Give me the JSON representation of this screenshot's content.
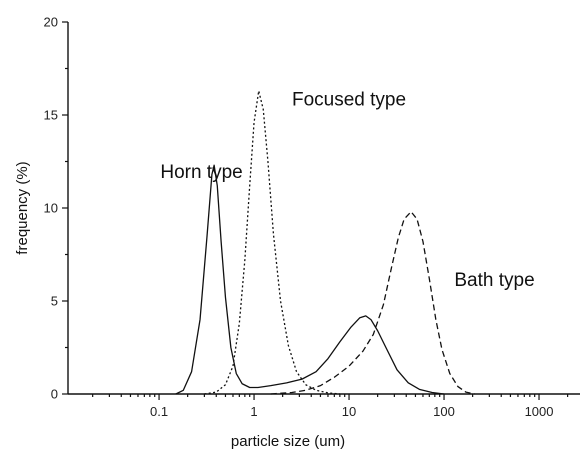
{
  "chart_data": {
    "type": "line",
    "xlabel": "particle size (um)",
    "ylabel": "frequency (%)",
    "x_scale": "log",
    "xlim": [
      0.011,
      2700
    ],
    "ylim": [
      0,
      20
    ],
    "x_ticks": [
      {
        "value": 0.1,
        "label": "0.1"
      },
      {
        "value": 1,
        "label": "1"
      },
      {
        "value": 10,
        "label": "10"
      },
      {
        "value": 100,
        "label": "100"
      },
      {
        "value": 1000,
        "label": "1000"
      }
    ],
    "y_ticks": [
      {
        "value": 0,
        "label": "0"
      },
      {
        "value": 5,
        "label": "5"
      },
      {
        "value": 10,
        "label": "10"
      },
      {
        "value": 15,
        "label": "15"
      },
      {
        "value": 20,
        "label": "20"
      }
    ],
    "grid": false,
    "series": [
      {
        "name": "Horn type",
        "line_style": "solid",
        "points": [
          [
            0.15,
            0
          ],
          [
            0.18,
            0.2
          ],
          [
            0.22,
            1.2
          ],
          [
            0.27,
            4
          ],
          [
            0.32,
            8.5
          ],
          [
            0.36,
            11.8
          ],
          [
            0.38,
            12.3
          ],
          [
            0.41,
            11.2
          ],
          [
            0.45,
            8.2
          ],
          [
            0.5,
            5.2
          ],
          [
            0.57,
            2.5
          ],
          [
            0.65,
            1.1
          ],
          [
            0.75,
            0.55
          ],
          [
            0.9,
            0.35
          ],
          [
            1.1,
            0.35
          ],
          [
            1.5,
            0.45
          ],
          [
            2.2,
            0.6
          ],
          [
            3.2,
            0.8
          ],
          [
            4.5,
            1.2
          ],
          [
            6,
            1.9
          ],
          [
            8,
            2.8
          ],
          [
            10.5,
            3.6
          ],
          [
            13,
            4.1
          ],
          [
            15,
            4.2
          ],
          [
            17,
            4
          ],
          [
            20,
            3.4
          ],
          [
            25,
            2.4
          ],
          [
            32,
            1.3
          ],
          [
            42,
            0.6
          ],
          [
            55,
            0.25
          ],
          [
            75,
            0.08
          ],
          [
            100,
            0
          ]
        ]
      },
      {
        "name": "Focused type",
        "line_style": "dotted",
        "points": [
          [
            0.3,
            0
          ],
          [
            0.4,
            0.1
          ],
          [
            0.5,
            0.5
          ],
          [
            0.6,
            1.5
          ],
          [
            0.7,
            3.8
          ],
          [
            0.8,
            7.2
          ],
          [
            0.9,
            11.2
          ],
          [
            1,
            14.6
          ],
          [
            1.12,
            16.3
          ],
          [
            1.25,
            15.3
          ],
          [
            1.4,
            12.5
          ],
          [
            1.6,
            8.6
          ],
          [
            1.9,
            5
          ],
          [
            2.3,
            2.6
          ],
          [
            2.8,
            1.2
          ],
          [
            3.5,
            0.5
          ],
          [
            4.5,
            0.2
          ],
          [
            6,
            0.06
          ],
          [
            8,
            0
          ]
        ]
      },
      {
        "name": "Bath type",
        "line_style": "dashed",
        "points": [
          [
            1.5,
            0
          ],
          [
            2.5,
            0.08
          ],
          [
            3.5,
            0.2
          ],
          [
            5,
            0.45
          ],
          [
            7,
            0.9
          ],
          [
            10,
            1.5
          ],
          [
            14,
            2.3
          ],
          [
            18,
            3.2
          ],
          [
            23,
            4.8
          ],
          [
            28,
            6.8
          ],
          [
            33,
            8.4
          ],
          [
            38,
            9.4
          ],
          [
            45,
            9.8
          ],
          [
            52,
            9.4
          ],
          [
            60,
            8.2
          ],
          [
            70,
            6.2
          ],
          [
            82,
            4
          ],
          [
            95,
            2.4
          ],
          [
            115,
            1.1
          ],
          [
            140,
            0.4
          ],
          [
            170,
            0.1
          ],
          [
            210,
            0
          ]
        ]
      }
    ],
    "annotations": [
      {
        "text": "Horn type",
        "x": 0.28,
        "y": 11.6
      },
      {
        "text": "Focused type",
        "x": 10,
        "y": 15.5
      },
      {
        "text": "Bath type",
        "x": 340,
        "y": 5.8
      }
    ]
  }
}
